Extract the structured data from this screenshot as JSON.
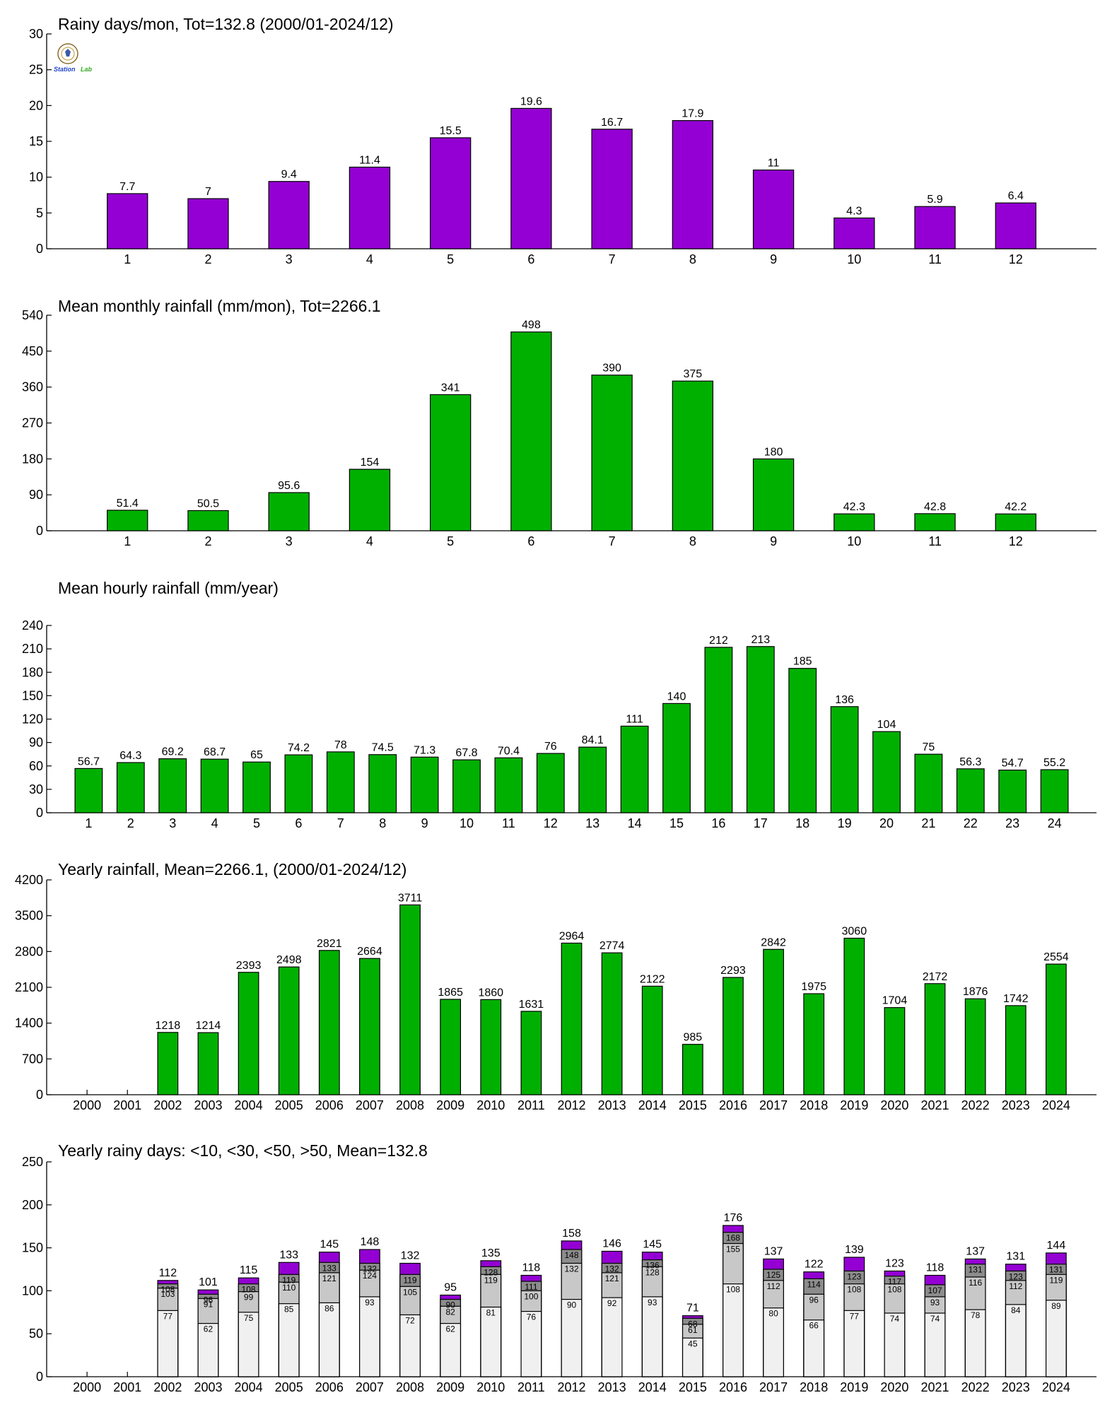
{
  "colors": {
    "purple": "#9400d3",
    "green": "#00b000",
    "seg_lt10": "#f0f0f0",
    "seg_lt30": "#c8c8c8",
    "seg_lt50": "#8c8c8c",
    "seg_gt50": "#9400d3"
  },
  "logo": {
    "icon": "station-lab-logo-icon",
    "text": "Station Lab"
  },
  "chart_data": [
    {
      "type": "bar",
      "title": "Rainy days/mon, Tot=132.8 (2000/01-2024/12)",
      "categories": [
        "1",
        "2",
        "3",
        "4",
        "5",
        "6",
        "7",
        "8",
        "9",
        "10",
        "11",
        "12"
      ],
      "values": [
        7.7,
        7,
        9.4,
        11.4,
        15.5,
        19.6,
        16.7,
        17.9,
        11,
        4.3,
        5.9,
        6.4
      ],
      "labels": [
        "7.7",
        "7",
        "9.4",
        "11.4",
        "15.5",
        "19.6",
        "16.7",
        "17.9",
        "11",
        "4.3",
        "5.9",
        "6.4"
      ],
      "ylim": [
        0,
        30
      ],
      "yticks": [
        "0",
        "5",
        "10",
        "15",
        "20",
        "25",
        "30"
      ],
      "color": "#9400d3"
    },
    {
      "type": "bar",
      "title": "Mean monthly rainfall (mm/mon), Tot=2266.1",
      "categories": [
        "1",
        "2",
        "3",
        "4",
        "5",
        "6",
        "7",
        "8",
        "9",
        "10",
        "11",
        "12"
      ],
      "values": [
        51.4,
        50.5,
        95.6,
        154,
        341,
        498,
        390,
        375,
        180,
        42.3,
        42.8,
        42.2
      ],
      "labels": [
        "51.4",
        "50.5",
        "95.6",
        "154",
        "341",
        "498",
        "390",
        "375",
        "180",
        "42.3",
        "42.8",
        "42.2"
      ],
      "ylim": [
        0,
        540
      ],
      "yticks": [
        "0",
        "90",
        "180",
        "270",
        "360",
        "450",
        "540"
      ],
      "color": "#00b000"
    },
    {
      "type": "bar",
      "title": "Mean hourly rainfall (mm/year)",
      "categories": [
        "1",
        "2",
        "3",
        "4",
        "5",
        "6",
        "7",
        "8",
        "9",
        "10",
        "11",
        "12",
        "13",
        "14",
        "15",
        "16",
        "17",
        "18",
        "19",
        "20",
        "21",
        "22",
        "23",
        "24"
      ],
      "values": [
        56.7,
        64.3,
        69.2,
        68.7,
        65,
        74.2,
        78,
        74.5,
        71.3,
        67.8,
        70.4,
        76,
        84.1,
        111,
        140,
        212,
        213,
        185,
        136,
        104,
        75,
        56.3,
        54.7,
        55.2
      ],
      "labels": [
        "56.7",
        "64.3",
        "69.2",
        "68.7",
        "65",
        "74.2",
        "78",
        "74.5",
        "71.3",
        "67.8",
        "70.4",
        "76",
        "84.1",
        "111",
        "140",
        "212",
        "213",
        "185",
        "136",
        "104",
        "75",
        "56.3",
        "54.7",
        "55.2"
      ],
      "ylim": [
        0,
        240
      ],
      "yticks": [
        "0",
        "30",
        "60",
        "90",
        "120",
        "150",
        "180",
        "210",
        "240"
      ],
      "color": "#00b000"
    },
    {
      "type": "bar",
      "title": "Yearly rainfall, Mean=2266.1, (2000/01-2024/12)",
      "categories": [
        "2000",
        "2001",
        "2002",
        "2003",
        "2004",
        "2005",
        "2006",
        "2007",
        "2008",
        "2009",
        "2010",
        "2011",
        "2012",
        "2013",
        "2014",
        "2015",
        "2016",
        "2017",
        "2018",
        "2019",
        "2020",
        "2021",
        "2022",
        "2023",
        "2024"
      ],
      "values": [
        0,
        0,
        1218,
        1214,
        2393,
        2498,
        2821,
        2664,
        3711,
        1865,
        1860,
        1631,
        2964,
        2774,
        2122,
        985,
        2293,
        2842,
        1975,
        3060,
        1704,
        2172,
        1876,
        1742,
        2554
      ],
      "labels": [
        "",
        "",
        "1218",
        "1214",
        "2393",
        "2498",
        "2821",
        "2664",
        "3711",
        "1865",
        "1860",
        "1631",
        "2964",
        "2774",
        "2122",
        "985",
        "2293",
        "2842",
        "1975",
        "3060",
        "1704",
        "2172",
        "1876",
        "1742",
        "2554"
      ],
      "ylim": [
        0,
        4200
      ],
      "yticks": [
        "0",
        "700",
        "1400",
        "2100",
        "2800",
        "3500",
        "4200"
      ],
      "color": "#00b000"
    },
    {
      "type": "bar",
      "stacked": true,
      "title": "Yearly rainy days: <10, <30, <50, >50, Mean=132.8",
      "categories": [
        "2000",
        "2001",
        "2002",
        "2003",
        "2004",
        "2005",
        "2006",
        "2007",
        "2008",
        "2009",
        "2010",
        "2011",
        "2012",
        "2013",
        "2014",
        "2015",
        "2016",
        "2017",
        "2018",
        "2019",
        "2020",
        "2021",
        "2022",
        "2023",
        "2024"
      ],
      "cumulative": {
        "lt10": [
          0,
          0,
          77,
          62,
          75,
          85,
          86,
          93,
          72,
          62,
          81,
          76,
          90,
          92,
          93,
          45,
          108,
          80,
          66,
          77,
          74,
          74,
          78,
          84,
          89
        ],
        "lt30": [
          0,
          0,
          103,
          91,
          99,
          110,
          121,
          124,
          105,
          82,
          119,
          100,
          132,
          121,
          128,
          61,
          155,
          112,
          96,
          108,
          108,
          93,
          116,
          112,
          119
        ],
        "lt50": [
          0,
          0,
          108,
          96,
          108,
          119,
          133,
          132,
          119,
          90,
          128,
          111,
          148,
          132,
          136,
          68,
          168,
          125,
          114,
          123,
          117,
          107,
          131,
          123,
          131
        ],
        "total": [
          0,
          0,
          112,
          101,
          115,
          133,
          145,
          148,
          132,
          95,
          135,
          118,
          158,
          146,
          145,
          71,
          176,
          137,
          122,
          139,
          123,
          118,
          137,
          131,
          144
        ]
      },
      "labels": {
        "lt10": [
          "",
          "",
          "77",
          "62",
          "75",
          "85",
          "86",
          "93",
          "72",
          "62",
          "81",
          "76",
          "90",
          "92",
          "93",
          "45",
          "108",
          "80",
          "66",
          "77",
          "74",
          "74",
          "78",
          "84",
          "89"
        ],
        "lt30": [
          "",
          "",
          "103",
          "91",
          "99",
          "110",
          "121",
          "124",
          "105",
          "82",
          "119",
          "100",
          "132",
          "121",
          "128",
          "61",
          "155",
          "112",
          "96",
          "108",
          "108",
          "93",
          "116",
          "112",
          "119"
        ],
        "lt50": [
          "",
          "",
          "108",
          "96",
          "108",
          "119",
          "133",
          "132",
          "119",
          "90",
          "128",
          "111",
          "148",
          "132",
          "136",
          "68",
          "168",
          "125",
          "114",
          "123",
          "117",
          "107",
          "131",
          "123",
          "131"
        ],
        "total": [
          "",
          "",
          "112",
          "101",
          "115",
          "133",
          "145",
          "148",
          "132",
          "95",
          "135",
          "118",
          "158",
          "146",
          "145",
          "71",
          "176",
          "137",
          "122",
          "139",
          "123",
          "118",
          "137",
          "131",
          "144"
        ]
      },
      "ylim": [
        0,
        250
      ],
      "yticks": [
        "0",
        "50",
        "100",
        "150",
        "200",
        "250"
      ]
    }
  ]
}
